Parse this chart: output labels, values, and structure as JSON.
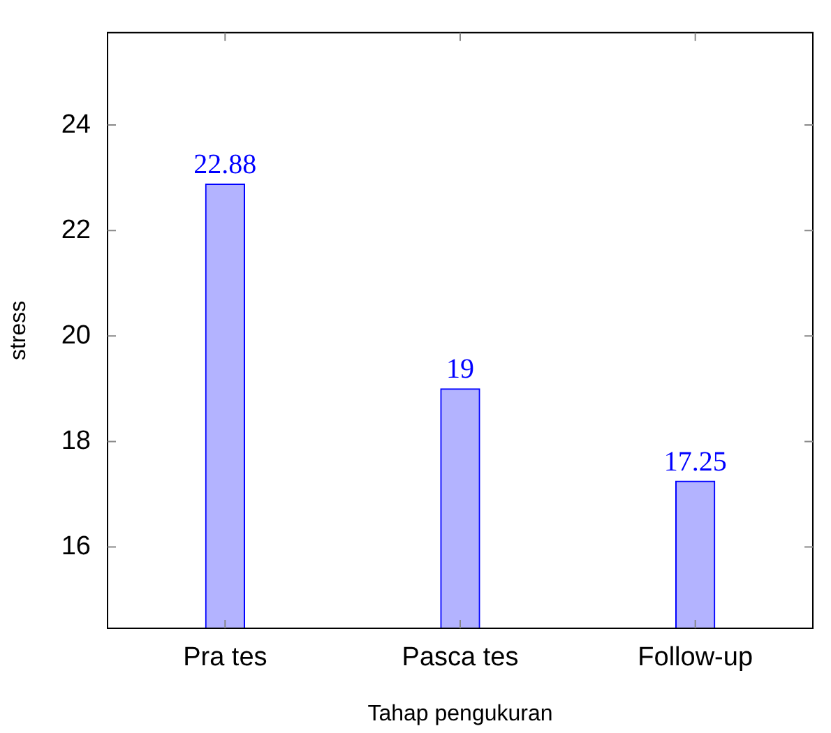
{
  "chart_data": {
    "type": "bar",
    "xlabel": "Tahap pengukuran",
    "ylabel": "stress",
    "categories": [
      "Pra tes",
      "Pasca tes",
      "Follow-up"
    ],
    "values": [
      22.88,
      19,
      17.25
    ],
    "color": "#b3b3ff",
    "ylim": [
      14.46,
      25.75
    ],
    "yticks": [
      16,
      18,
      20,
      22,
      24
    ],
    "grid": false,
    "data_labels": true
  }
}
